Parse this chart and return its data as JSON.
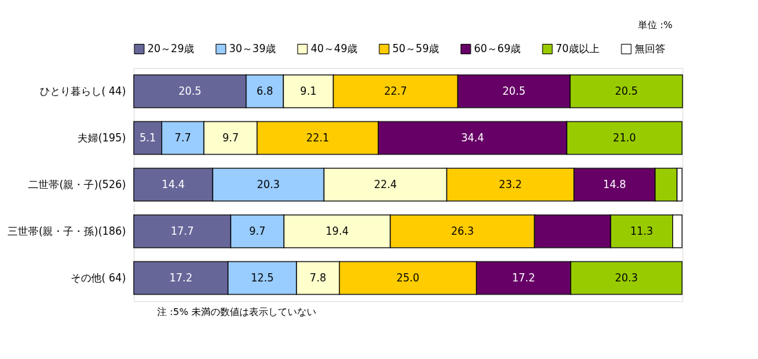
{
  "chart_data": {
    "type": "bar",
    "orientation": "horizontal",
    "stacked": true,
    "categories": [
      "ひとり暮らし( 44)",
      "夫婦(195)",
      "二世帯(親・子)(526)",
      "三世帯(親・子・孫)(186)",
      "その他( 64)"
    ],
    "series": [
      {
        "name": "20～29歳",
        "color": "#666699",
        "values": [
          20.5,
          5.1,
          14.4,
          17.7,
          17.2
        ],
        "value_labels": [
          "20.5",
          "5.1",
          "14.4",
          "17.7",
          "17.2"
        ]
      },
      {
        "name": "30～39歳",
        "color": "#99ccff",
        "values": [
          6.8,
          7.7,
          20.3,
          9.7,
          12.5
        ],
        "value_labels": [
          "6.8",
          "7.7",
          "20.3",
          "9.7",
          "12.5"
        ]
      },
      {
        "name": "40～49歳",
        "color": "#ffffcc",
        "values": [
          9.1,
          9.7,
          22.4,
          19.4,
          7.8
        ],
        "value_labels": [
          "9.1",
          "9.7",
          "22.4",
          "19.4",
          "7.8"
        ]
      },
      {
        "name": "50～59歳",
        "color": "#ffcc00",
        "values": [
          22.7,
          22.1,
          23.2,
          26.3,
          25.0
        ],
        "value_labels": [
          "22.7",
          "22.1",
          "23.2",
          "26.3",
          "25.0"
        ]
      },
      {
        "name": "60～69歳",
        "color": "#660066",
        "values": [
          20.5,
          34.4,
          14.8,
          13.9,
          17.2
        ],
        "value_labels": [
          "20.5",
          "34.4",
          "14.8",
          null,
          "17.2"
        ]
      },
      {
        "name": "70歳以上",
        "color": "#99cc00",
        "values": [
          20.5,
          21.0,
          4.0,
          11.3,
          20.3
        ],
        "value_labels": [
          "20.5",
          "21.0",
          null,
          "11.3",
          "20.3"
        ]
      },
      {
        "name": "無回答",
        "color": "#ffffff",
        "values": [
          0,
          0,
          0.9,
          1.7,
          0
        ],
        "value_labels": [
          null,
          null,
          null,
          null,
          null
        ]
      }
    ],
    "legend": "top",
    "tick_labels": "y",
    "annotations": [
      "単位 :%",
      "注 :5% 未満の数値は表示していない"
    ]
  }
}
